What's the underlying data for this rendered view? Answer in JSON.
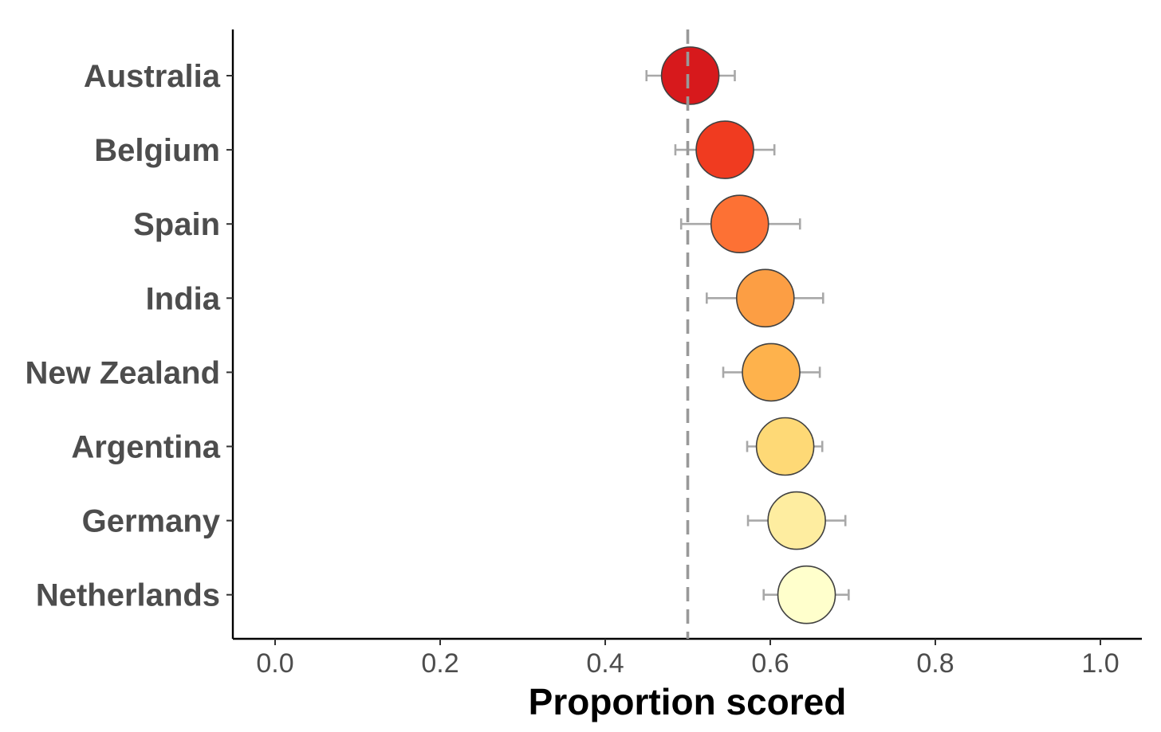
{
  "chart_data": {
    "type": "scatter",
    "title": "",
    "xlabel": "Proportion scored",
    "ylabel": "",
    "xlim": [
      -0.05,
      1.05
    ],
    "xticks": [
      0.0,
      0.2,
      0.4,
      0.6,
      0.8,
      1.0
    ],
    "xtick_labels": [
      "0.0",
      "0.2",
      "0.4",
      "0.6",
      "0.8",
      "1.0"
    ],
    "reference_line": {
      "x": 0.5,
      "style": "dashed",
      "color": "#999999"
    },
    "grid": false,
    "legend": "none",
    "categories": [
      "Australia",
      "Belgium",
      "Spain",
      "India",
      "New Zealand",
      "Argentina",
      "Germany",
      "Netherlands"
    ],
    "values": [
      0.503,
      0.545,
      0.563,
      0.594,
      0.601,
      0.618,
      0.632,
      0.644
    ],
    "error_low": [
      0.45,
      0.485,
      0.492,
      0.523,
      0.543,
      0.572,
      0.573,
      0.592
    ],
    "error_high": [
      0.557,
      0.605,
      0.636,
      0.664,
      0.66,
      0.663,
      0.691,
      0.695
    ],
    "point_colors": [
      "#d7191c",
      "#f03b20",
      "#fd7134",
      "#fc9e44",
      "#feb24c",
      "#fed976",
      "#feeda0",
      "#ffffcc"
    ]
  }
}
